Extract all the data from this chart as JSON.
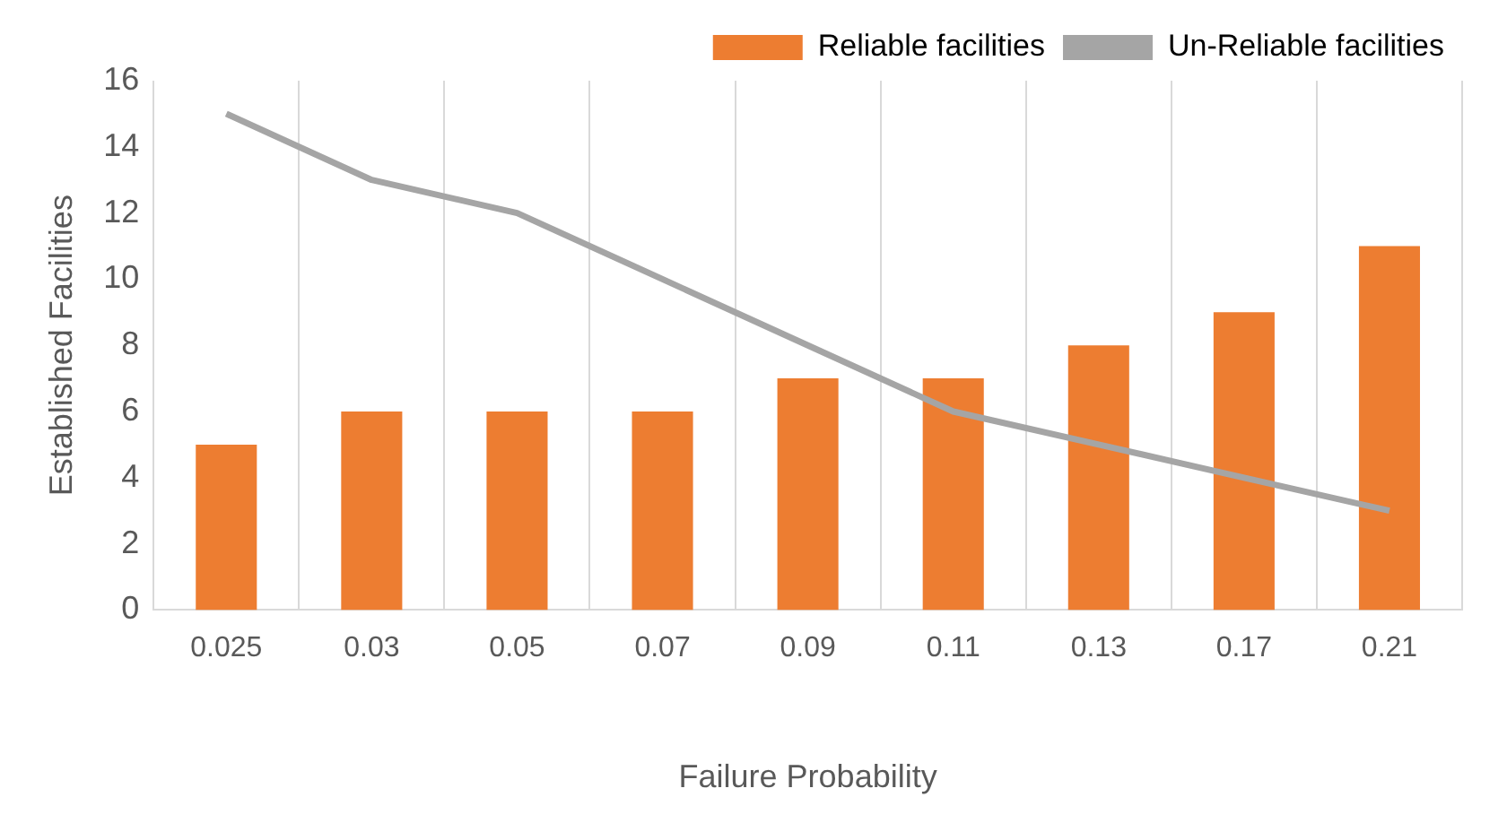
{
  "chart_data": {
    "type": "bar",
    "xlabel": "Failure Probability",
    "ylabel": "Established Facilities",
    "categories": [
      "0.025",
      "0.03",
      "0.05",
      "0.07",
      "0.09",
      "0.11",
      "0.13",
      "0.17",
      "0.21"
    ],
    "series": [
      {
        "name": "Reliable facilities",
        "color": "#ed7d31",
        "values": [
          5,
          6,
          6,
          6,
          7,
          7,
          8,
          9,
          11
        ]
      },
      {
        "name": "Un-Reliable facilities",
        "type": "line",
        "color": "#a5a5a5",
        "values": [
          15,
          13,
          12,
          10,
          8,
          6,
          5,
          4,
          3
        ]
      }
    ],
    "ylim": [
      0,
      16
    ],
    "yticks": [
      0,
      2,
      4,
      6,
      8,
      10,
      12,
      14,
      16
    ],
    "grid": "x",
    "legend": "top right",
    "marker": "none"
  }
}
